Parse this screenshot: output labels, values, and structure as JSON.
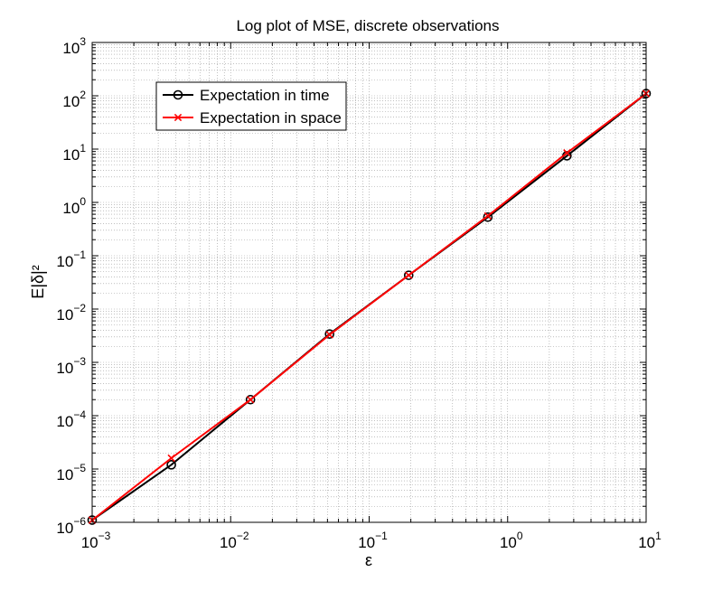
{
  "chart_data": {
    "type": "line",
    "title": "Log plot of MSE, discrete observations",
    "xlabel": "ε",
    "ylabel": "E|δ|²",
    "xscale": "log",
    "yscale": "log",
    "xlim": [
      0.001,
      10
    ],
    "ylim": [
      1e-06,
      1000
    ],
    "grid": true,
    "legend_position": "top-left",
    "x_ticks": [
      {
        "base": "10",
        "exp": "−3",
        "value": 0.001
      },
      {
        "base": "10",
        "exp": "−2",
        "value": 0.01
      },
      {
        "base": "10",
        "exp": "−1",
        "value": 0.1
      },
      {
        "base": "10",
        "exp": "0",
        "value": 1
      },
      {
        "base": "10",
        "exp": "1",
        "value": 10
      }
    ],
    "y_ticks": [
      {
        "base": "10",
        "exp": "−6",
        "value": 1e-06
      },
      {
        "base": "10",
        "exp": "−5",
        "value": 1e-05
      },
      {
        "base": "10",
        "exp": "−4",
        "value": 0.0001
      },
      {
        "base": "10",
        "exp": "−3",
        "value": 0.001
      },
      {
        "base": "10",
        "exp": "−2",
        "value": 0.01
      },
      {
        "base": "10",
        "exp": "−1",
        "value": 0.1
      },
      {
        "base": "10",
        "exp": "0",
        "value": 1
      },
      {
        "base": "10",
        "exp": "1",
        "value": 10
      },
      {
        "base": "10",
        "exp": "2",
        "value": 100
      },
      {
        "base": "10",
        "exp": "3",
        "value": 1000
      }
    ],
    "series": [
      {
        "name": "Expectation in time",
        "color": "#000000",
        "marker": "circle",
        "x": [
          0.001,
          0.00373,
          0.0139,
          0.0518,
          0.193,
          0.72,
          2.68,
          10
        ],
        "y": [
          1.1e-06,
          1.2e-05,
          0.0002,
          0.0034,
          0.043,
          0.53,
          7.5,
          110
        ]
      },
      {
        "name": "Expectation in space",
        "color": "#ff0000",
        "marker": "x",
        "x": [
          0.001,
          0.00373,
          0.0139,
          0.0518,
          0.193,
          0.72,
          2.68,
          10
        ],
        "y": [
          1.1e-06,
          1.6e-05,
          0.0002,
          0.0033,
          0.043,
          0.56,
          8.5,
          110
        ]
      }
    ]
  }
}
